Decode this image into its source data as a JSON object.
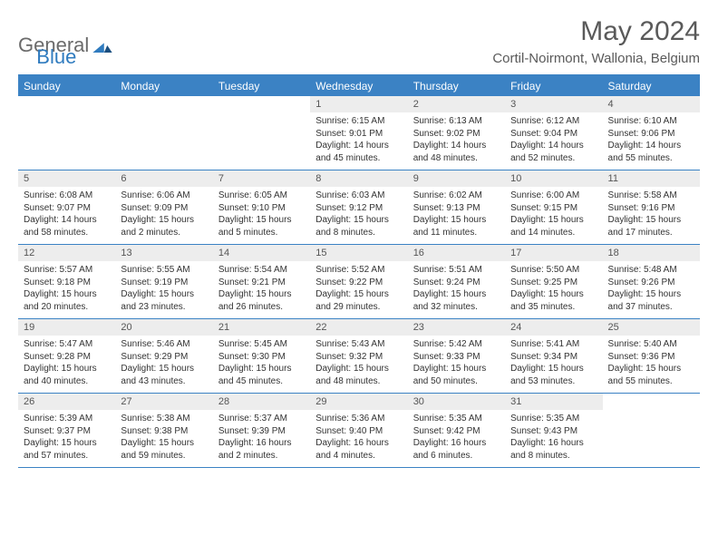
{
  "logo": {
    "text1": "General",
    "text2": "Blue"
  },
  "title": "May 2024",
  "location": "Cortil-Noirmont, Wallonia, Belgium",
  "dayHeaders": [
    "Sunday",
    "Monday",
    "Tuesday",
    "Wednesday",
    "Thursday",
    "Friday",
    "Saturday"
  ],
  "colors": {
    "accent": "#3b82c4",
    "headerText": "#ffffff",
    "dayNumBg": "#ededed",
    "bodyText": "#333333",
    "logoGray": "#6b6b6b"
  },
  "weeks": [
    [
      {
        "empty": true
      },
      {
        "empty": true
      },
      {
        "empty": true
      },
      {
        "num": "1",
        "sunrise": "6:15 AM",
        "sunset": "9:01 PM",
        "daylight": "14 hours and 45 minutes."
      },
      {
        "num": "2",
        "sunrise": "6:13 AM",
        "sunset": "9:02 PM",
        "daylight": "14 hours and 48 minutes."
      },
      {
        "num": "3",
        "sunrise": "6:12 AM",
        "sunset": "9:04 PM",
        "daylight": "14 hours and 52 minutes."
      },
      {
        "num": "4",
        "sunrise": "6:10 AM",
        "sunset": "9:06 PM",
        "daylight": "14 hours and 55 minutes."
      }
    ],
    [
      {
        "num": "5",
        "sunrise": "6:08 AM",
        "sunset": "9:07 PM",
        "daylight": "14 hours and 58 minutes."
      },
      {
        "num": "6",
        "sunrise": "6:06 AM",
        "sunset": "9:09 PM",
        "daylight": "15 hours and 2 minutes."
      },
      {
        "num": "7",
        "sunrise": "6:05 AM",
        "sunset": "9:10 PM",
        "daylight": "15 hours and 5 minutes."
      },
      {
        "num": "8",
        "sunrise": "6:03 AM",
        "sunset": "9:12 PM",
        "daylight": "15 hours and 8 minutes."
      },
      {
        "num": "9",
        "sunrise": "6:02 AM",
        "sunset": "9:13 PM",
        "daylight": "15 hours and 11 minutes."
      },
      {
        "num": "10",
        "sunrise": "6:00 AM",
        "sunset": "9:15 PM",
        "daylight": "15 hours and 14 minutes."
      },
      {
        "num": "11",
        "sunrise": "5:58 AM",
        "sunset": "9:16 PM",
        "daylight": "15 hours and 17 minutes."
      }
    ],
    [
      {
        "num": "12",
        "sunrise": "5:57 AM",
        "sunset": "9:18 PM",
        "daylight": "15 hours and 20 minutes."
      },
      {
        "num": "13",
        "sunrise": "5:55 AM",
        "sunset": "9:19 PM",
        "daylight": "15 hours and 23 minutes."
      },
      {
        "num": "14",
        "sunrise": "5:54 AM",
        "sunset": "9:21 PM",
        "daylight": "15 hours and 26 minutes."
      },
      {
        "num": "15",
        "sunrise": "5:52 AM",
        "sunset": "9:22 PM",
        "daylight": "15 hours and 29 minutes."
      },
      {
        "num": "16",
        "sunrise": "5:51 AM",
        "sunset": "9:24 PM",
        "daylight": "15 hours and 32 minutes."
      },
      {
        "num": "17",
        "sunrise": "5:50 AM",
        "sunset": "9:25 PM",
        "daylight": "15 hours and 35 minutes."
      },
      {
        "num": "18",
        "sunrise": "5:48 AM",
        "sunset": "9:26 PM",
        "daylight": "15 hours and 37 minutes."
      }
    ],
    [
      {
        "num": "19",
        "sunrise": "5:47 AM",
        "sunset": "9:28 PM",
        "daylight": "15 hours and 40 minutes."
      },
      {
        "num": "20",
        "sunrise": "5:46 AM",
        "sunset": "9:29 PM",
        "daylight": "15 hours and 43 minutes."
      },
      {
        "num": "21",
        "sunrise": "5:45 AM",
        "sunset": "9:30 PM",
        "daylight": "15 hours and 45 minutes."
      },
      {
        "num": "22",
        "sunrise": "5:43 AM",
        "sunset": "9:32 PM",
        "daylight": "15 hours and 48 minutes."
      },
      {
        "num": "23",
        "sunrise": "5:42 AM",
        "sunset": "9:33 PM",
        "daylight": "15 hours and 50 minutes."
      },
      {
        "num": "24",
        "sunrise": "5:41 AM",
        "sunset": "9:34 PM",
        "daylight": "15 hours and 53 minutes."
      },
      {
        "num": "25",
        "sunrise": "5:40 AM",
        "sunset": "9:36 PM",
        "daylight": "15 hours and 55 minutes."
      }
    ],
    [
      {
        "num": "26",
        "sunrise": "5:39 AM",
        "sunset": "9:37 PM",
        "daylight": "15 hours and 57 minutes."
      },
      {
        "num": "27",
        "sunrise": "5:38 AM",
        "sunset": "9:38 PM",
        "daylight": "15 hours and 59 minutes."
      },
      {
        "num": "28",
        "sunrise": "5:37 AM",
        "sunset": "9:39 PM",
        "daylight": "16 hours and 2 minutes."
      },
      {
        "num": "29",
        "sunrise": "5:36 AM",
        "sunset": "9:40 PM",
        "daylight": "16 hours and 4 minutes."
      },
      {
        "num": "30",
        "sunrise": "5:35 AM",
        "sunset": "9:42 PM",
        "daylight": "16 hours and 6 minutes."
      },
      {
        "num": "31",
        "sunrise": "5:35 AM",
        "sunset": "9:43 PM",
        "daylight": "16 hours and 8 minutes."
      },
      {
        "empty": true
      }
    ]
  ]
}
